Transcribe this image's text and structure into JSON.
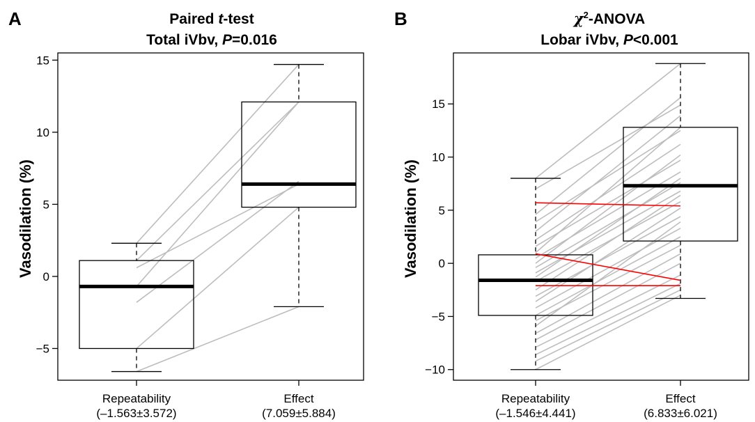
{
  "chart_data": [
    {
      "type": "box",
      "panel": "A",
      "title_line1": {
        "before": "Paired ",
        "italic": "t",
        "after": "-test"
      },
      "title_line2": {
        "before": "Total iVbv, ",
        "italic": "P",
        "after": "=0.016"
      },
      "ylabel": "Vasodilation (%)",
      "ylim": [
        -7.2,
        15.5
      ],
      "yticks": [
        -5,
        0,
        5,
        10,
        15
      ],
      "yticklabels": [
        "−5",
        "0",
        "5",
        "10",
        "15"
      ],
      "categories": [
        {
          "label": "Repeatability",
          "sublabel": "(–1.563±3.572)"
        },
        {
          "label": "Effect",
          "sublabel": "(7.059±5.884)"
        }
      ],
      "boxes": [
        {
          "whisker_low": -6.6,
          "q1": -5.0,
          "median": -0.7,
          "q3": 1.1,
          "whisker_high": 2.3
        },
        {
          "whisker_low": -2.1,
          "q1": 4.8,
          "median": 6.4,
          "q3": 12.1,
          "whisker_high": 14.7
        }
      ],
      "paired_lines": [
        {
          "from": 2.3,
          "to": 14.7
        },
        {
          "from": 1.1,
          "to": 12.1
        },
        {
          "from": 0.6,
          "to": 6.4
        },
        {
          "from": -0.7,
          "to": 12.1
        },
        {
          "from": -1.8,
          "to": 6.6
        },
        {
          "from": -5.0,
          "to": 4.8
        },
        {
          "from": -6.6,
          "to": -2.1
        }
      ],
      "colors": {
        "paired": "#bdbdbd",
        "highlight": "#ff0000"
      }
    },
    {
      "type": "box",
      "panel": "B",
      "title_line1": {
        "before": "",
        "italic": "χ",
        "sup": "2",
        "after": "-ANOVA"
      },
      "title_line2": {
        "before": "Lobar iVbv, ",
        "italic": "P",
        "after": "<0.001"
      },
      "ylabel": "Vasodilation (%)",
      "ylim": [
        -11.0,
        19.8
      ],
      "yticks": [
        -10,
        -5,
        0,
        5,
        10,
        15
      ],
      "yticklabels": [
        "−10",
        "−5",
        "0",
        "5",
        "10",
        "15"
      ],
      "categories": [
        {
          "label": "Repeatability",
          "sublabel": "(–1.546±4.441)"
        },
        {
          "label": "Effect",
          "sublabel": "(6.833±6.021)"
        }
      ],
      "boxes": [
        {
          "whisker_low": -10.0,
          "q1": -4.9,
          "median": -1.6,
          "q3": 0.8,
          "whisker_high": 8.0
        },
        {
          "whisker_low": -3.3,
          "q1": 2.1,
          "median": 7.3,
          "q3": 12.8,
          "whisker_high": 18.8
        }
      ],
      "paired_lines": [
        {
          "from": 8.0,
          "to": 18.8
        },
        {
          "from": 7.0,
          "to": 14.9
        },
        {
          "from": 4.6,
          "to": 15.6
        },
        {
          "from": 3.9,
          "to": 12.5
        },
        {
          "from": 3.0,
          "to": 13.9
        },
        {
          "from": 2.2,
          "to": 11.2
        },
        {
          "from": 1.6,
          "to": 9.7
        },
        {
          "from": 1.0,
          "to": 12.8
        },
        {
          "from": 0.5,
          "to": 8.6
        },
        {
          "from": 0.0,
          "to": 10.2
        },
        {
          "from": -0.4,
          "to": 7.6
        },
        {
          "from": -0.9,
          "to": 6.8
        },
        {
          "from": -1.3,
          "to": 8.0
        },
        {
          "from": -1.7,
          "to": 5.8
        },
        {
          "from": -2.5,
          "to": 6.4
        },
        {
          "from": -3.1,
          "to": 4.4
        },
        {
          "from": -3.6,
          "to": 5.2
        },
        {
          "from": -4.2,
          "to": 3.3
        },
        {
          "from": -4.9,
          "to": 2.5
        },
        {
          "from": -5.4,
          "to": 1.7
        },
        {
          "from": -5.9,
          "to": 3.9
        },
        {
          "from": -6.6,
          "to": 0.9
        },
        {
          "from": -7.2,
          "to": 0.0
        },
        {
          "from": -7.9,
          "to": -1.1
        },
        {
          "from": -8.6,
          "to": -1.9
        },
        {
          "from": -9.2,
          "to": -2.5
        },
        {
          "from": -10.0,
          "to": -3.0
        }
      ],
      "highlight_lines": [
        {
          "from": 5.7,
          "to": 5.4
        },
        {
          "from": 0.9,
          "to": -1.6
        },
        {
          "from": -2.1,
          "to": -2.1
        }
      ],
      "colors": {
        "paired": "#bdbdbd",
        "highlight": "#ff0000"
      }
    }
  ]
}
